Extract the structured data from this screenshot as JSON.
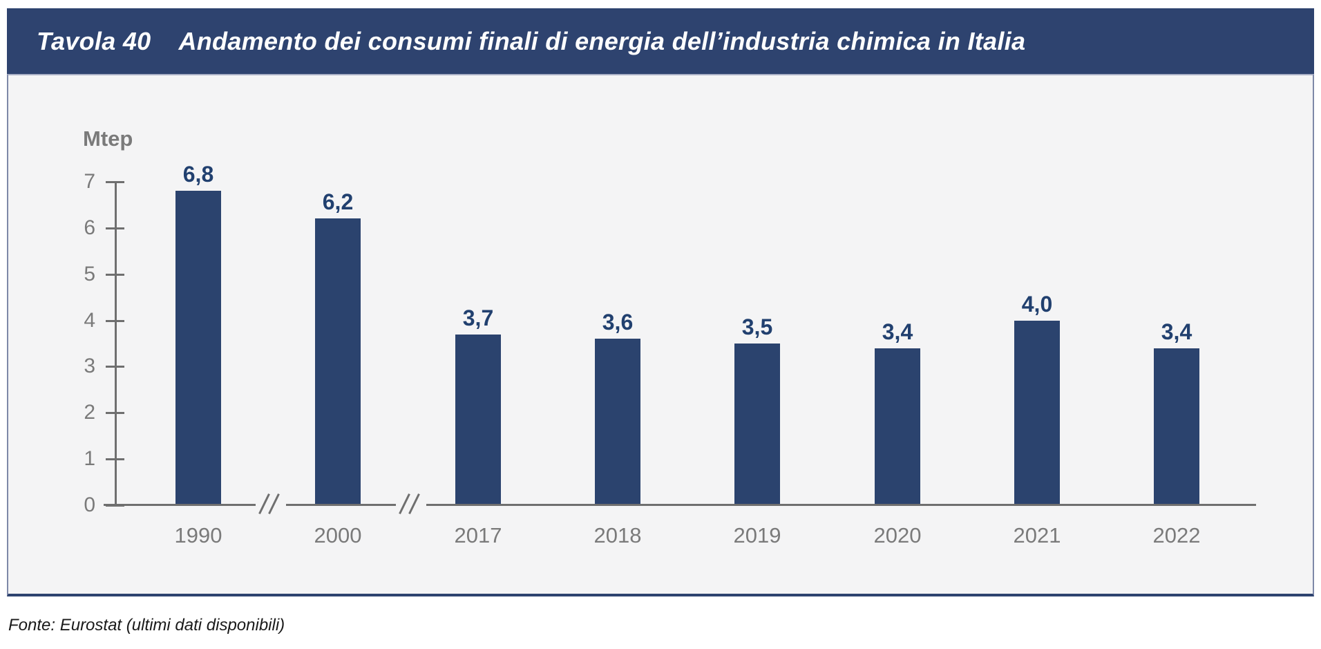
{
  "header": {
    "table_label": "Tavola 40",
    "title": "Andamento dei consumi finali di energia dell’industria chimica in Italia"
  },
  "chart_data": {
    "type": "bar",
    "title": "Andamento dei consumi finali di energia dell’industria chimica in Italia",
    "unit_label": "Mtep",
    "categories": [
      "1990",
      "2000",
      "2017",
      "2018",
      "2019",
      "2020",
      "2021",
      "2022"
    ],
    "values": [
      6.8,
      6.2,
      3.7,
      3.6,
      3.5,
      3.4,
      4.0,
      3.4
    ],
    "value_labels": [
      "6,8",
      "6,2",
      "3,7",
      "3,6",
      "3,5",
      "3,4",
      "4,0",
      "3,4"
    ],
    "ylim": [
      0,
      7
    ],
    "y_ticks": [
      0,
      1,
      2,
      3,
      4,
      5,
      6,
      7
    ],
    "grid": false,
    "legend": false,
    "x_axis_break_after_category_indices": [
      0,
      1
    ],
    "colors": {
      "bar": "#2B436E",
      "value_label": "#21406F",
      "axis": "#6F6F6F",
      "tick_label": "#7A7A7A",
      "unit_label": "#7A7A7A"
    }
  },
  "footer": {
    "source": "Fonte: Eurostat (ultimi dati disponibili)"
  },
  "theme": {
    "page_bg": "#FFFFFF",
    "header_bg": "#2E436F",
    "header_text": "#FFFFFF",
    "panel_bg": "#F4F4F5",
    "panel_border_side": "#7E88A8",
    "panel_border_top": "#AAB0C6",
    "panel_border_bottom": "#2E436F",
    "source_text": "#1A1A1A"
  }
}
